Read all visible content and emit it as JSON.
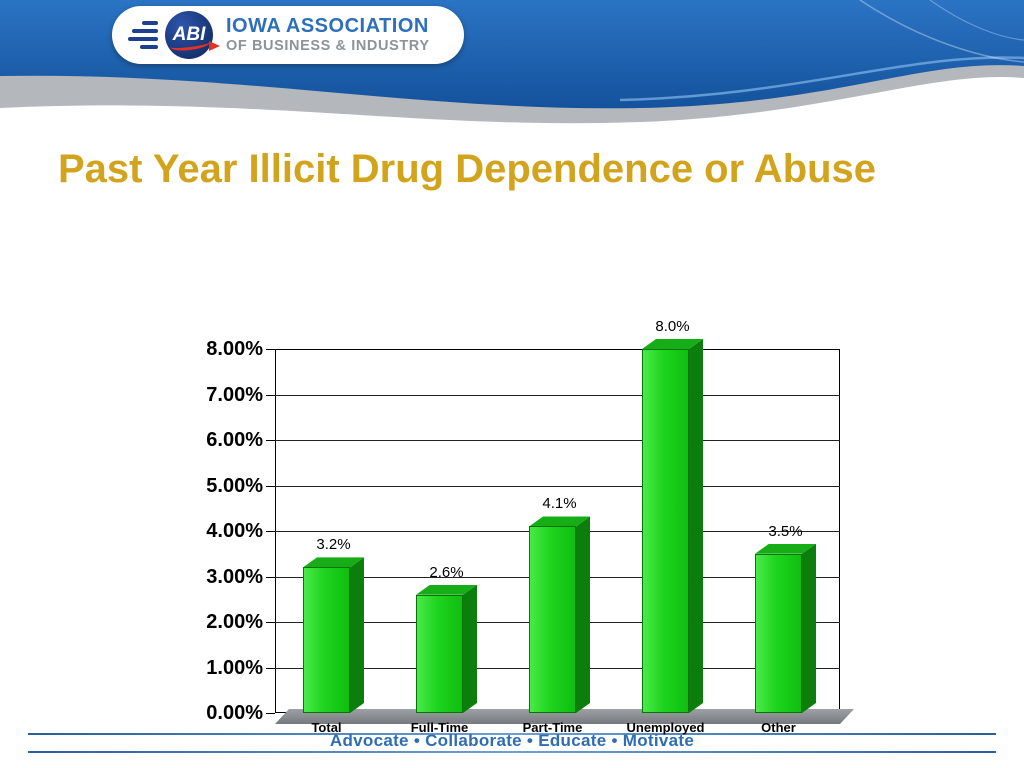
{
  "header": {
    "logo_abbr": "ABI",
    "org_line1": "IOWA ASSOCIATION",
    "org_line2": "OF BUSINESS & INDUSTRY"
  },
  "title": "Past Year Illicit Drug Dependence or Abuse",
  "footer": {
    "tagline": "Advocate  •  Collaborate  •  Educate  •  Motivate"
  },
  "chart_data": {
    "type": "bar",
    "title": "",
    "categories": [
      "Total",
      "Full-Time",
      "Part-Time",
      "Unemployed",
      "Other"
    ],
    "values": [
      3.2,
      2.6,
      4.1,
      8.0,
      3.5
    ],
    "data_labels": [
      "3.2%",
      "2.6%",
      "4.1%",
      "8.0%",
      "3.5%"
    ],
    "y_ticks": [
      "8.00%",
      "7.00%",
      "6.00%",
      "5.00%",
      "4.00%",
      "3.00%",
      "2.00%",
      "1.00%",
      "0.00%"
    ],
    "ylim": [
      0,
      8
    ],
    "xlabel": "",
    "ylabel": "",
    "grid": true,
    "legend": "none",
    "bar_color": "#1ED41E",
    "bar_side_color": "#0B7E0B",
    "bar_top_color": "#17AD17"
  },
  "colors": {
    "title_gold": "#D2A41E",
    "wave_blue": "#1B5FA8",
    "wave_gray": "#B4B7BC",
    "footer_blue": "#2E6DB4"
  }
}
